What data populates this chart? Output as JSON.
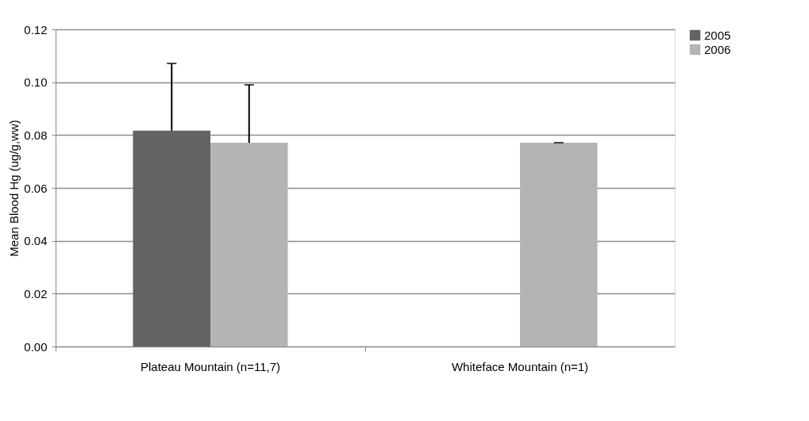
{
  "chart_data": {
    "type": "bar",
    "ylabel": "Mean Blood Hg (ug/g,ww)",
    "categories": [
      "Plateau Mountain (n=11,7)",
      "Whiteface Mountain (n=1)"
    ],
    "series": [
      {
        "name": "2005",
        "color": "#636363",
        "values": [
          0.0817,
          null
        ],
        "errors": [
          [
            0.0817,
            0.1071
          ],
          null
        ]
      },
      {
        "name": "2006",
        "color": "#b4b4b4",
        "values": [
          0.0771,
          0.0771
        ],
        "errors": [
          [
            0.0771,
            0.099
          ],
          [
            0.0771,
            0.0771
          ]
        ]
      }
    ],
    "ylim": [
      0,
      0.12
    ],
    "yticks": [
      {
        "value": 0,
        "label": "0.00"
      },
      {
        "value": 0.02,
        "label": "0.02"
      },
      {
        "value": 0.04,
        "label": "0.04"
      },
      {
        "value": 0.06,
        "label": "0.06"
      },
      {
        "value": 0.08,
        "label": "0.08"
      },
      {
        "value": 0.1,
        "label": "0.10"
      },
      {
        "value": 0.12,
        "label": "0.12"
      }
    ],
    "grid": "y",
    "legend": "right"
  }
}
